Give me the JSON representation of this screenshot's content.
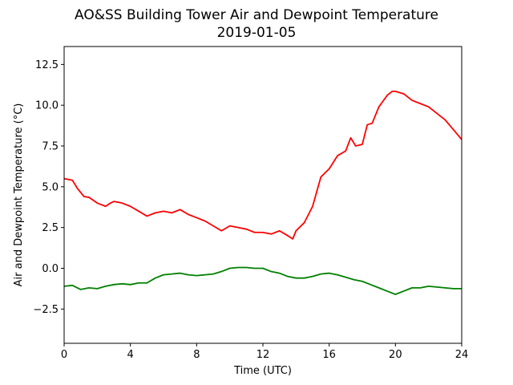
{
  "chart_data": {
    "type": "line",
    "title": "AO&SS Building Tower Air and Dewpoint Temperature",
    "subtitle": "2019-01-05",
    "xlabel": "Time (UTC)",
    "ylabel": "Air and Dewpoint Temperature (°C)",
    "xlim": [
      0,
      24
    ],
    "ylim": [
      -4.6,
      13.6
    ],
    "xticks": [
      0,
      4,
      8,
      12,
      16,
      20,
      24
    ],
    "xtick_labels": [
      "0",
      "4",
      "8",
      "12",
      "16",
      "20",
      "24"
    ],
    "yticks": [
      -2.5,
      0.0,
      2.5,
      5.0,
      7.5,
      10.0,
      12.5
    ],
    "ytick_labels": [
      "−2.5",
      "0.0",
      "2.5",
      "5.0",
      "7.5",
      "10.0",
      "12.5"
    ],
    "grid": false,
    "series": [
      {
        "color": "#ff0000",
        "x": [
          0,
          0.5,
          0.8,
          1.2,
          1.5,
          2.0,
          2.5,
          2.8,
          3.0,
          3.5,
          4.0,
          4.5,
          5.0,
          5.5,
          6.0,
          6.5,
          7.0,
          7.5,
          8.0,
          8.5,
          9.0,
          9.5,
          10.0,
          10.5,
          11.0,
          11.5,
          12.0,
          12.5,
          13.0,
          13.5,
          13.8,
          14.0,
          14.5,
          15.0,
          15.5,
          16.0,
          16.5,
          17.0,
          17.3,
          17.6,
          18.0,
          18.3,
          18.6,
          19.0,
          19.5,
          19.8,
          20.0,
          20.5,
          21.0,
          21.5,
          22.0,
          22.5,
          23.0,
          23.5,
          24.0
        ],
        "y": [
          5.5,
          5.4,
          4.9,
          4.4,
          4.35,
          4.0,
          3.8,
          4.0,
          4.1,
          4.0,
          3.8,
          3.5,
          3.2,
          3.4,
          3.5,
          3.4,
          3.6,
          3.3,
          3.1,
          2.9,
          2.6,
          2.3,
          2.6,
          2.5,
          2.4,
          2.2,
          2.2,
          2.1,
          2.3,
          2.0,
          1.8,
          2.3,
          2.8,
          3.8,
          5.6,
          6.1,
          6.9,
          7.2,
          8.0,
          7.5,
          7.6,
          8.8,
          8.9,
          9.9,
          10.6,
          10.85,
          10.85,
          10.7,
          10.3,
          10.1,
          9.9,
          9.5,
          9.1,
          8.5,
          7.9
        ]
      },
      {
        "color": "#008000",
        "x": [
          0,
          0.5,
          1.0,
          1.5,
          2.0,
          2.5,
          3.0,
          3.5,
          4.0,
          4.5,
          5.0,
          5.5,
          6.0,
          6.5,
          7.0,
          7.5,
          8.0,
          8.5,
          9.0,
          9.5,
          10.0,
          10.5,
          11.0,
          11.5,
          12.0,
          12.5,
          13.0,
          13.5,
          14.0,
          14.5,
          15.0,
          15.5,
          16.0,
          16.5,
          17.0,
          17.5,
          18.0,
          18.5,
          19.0,
          19.5,
          20.0,
          20.5,
          21.0,
          21.5,
          22.0,
          22.5,
          23.0,
          23.5,
          24.0
        ],
        "y": [
          -1.1,
          -1.05,
          -1.3,
          -1.2,
          -1.25,
          -1.1,
          -1.0,
          -0.95,
          -1.0,
          -0.9,
          -0.9,
          -0.6,
          -0.4,
          -0.35,
          -0.3,
          -0.4,
          -0.45,
          -0.4,
          -0.35,
          -0.2,
          0.0,
          0.05,
          0.05,
          0.0,
          0.0,
          -0.2,
          -0.3,
          -0.5,
          -0.6,
          -0.6,
          -0.5,
          -0.35,
          -0.3,
          -0.4,
          -0.55,
          -0.7,
          -0.8,
          -1.0,
          -1.2,
          -1.4,
          -1.6,
          -1.4,
          -1.2,
          -1.2,
          -1.1,
          -1.15,
          -1.2,
          -1.25,
          -1.25
        ]
      }
    ]
  }
}
